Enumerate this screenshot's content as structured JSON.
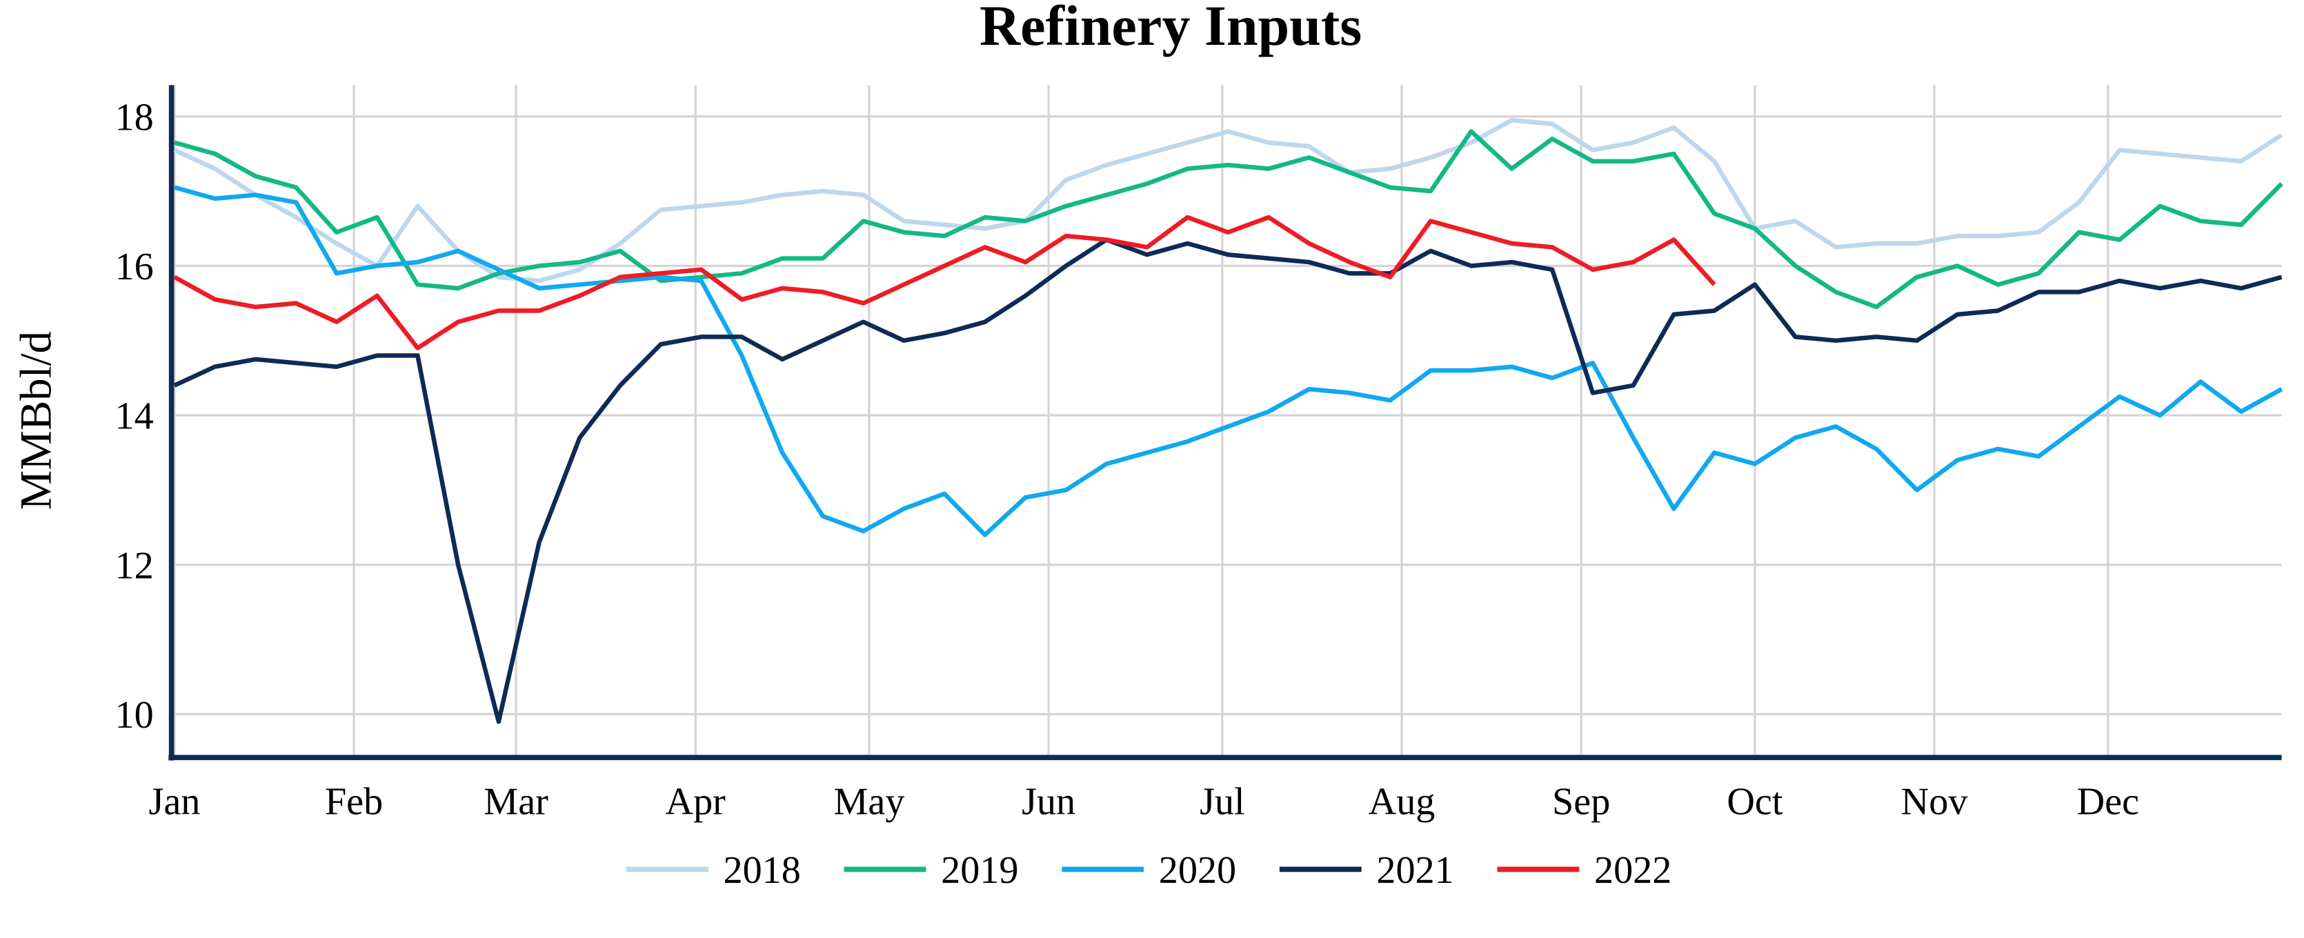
{
  "chart_data": {
    "type": "line",
    "title": "Refinery Inputs",
    "y_label": "MMBbl/d",
    "x": [
      0,
      7,
      14,
      21,
      28,
      35,
      42,
      49,
      56,
      63,
      70,
      77,
      84,
      91,
      98,
      105,
      112,
      119,
      126,
      133,
      140,
      147,
      154,
      161,
      168,
      175,
      182,
      189,
      196,
      203,
      210,
      217,
      224,
      231,
      238,
      245,
      252,
      259,
      266,
      273,
      280,
      287,
      294,
      301,
      308,
      315,
      322,
      329,
      336,
      343,
      350,
      357,
      364
    ],
    "xlim": [
      0,
      364
    ],
    "xticks": [
      {
        "value": 0,
        "label": "Jan"
      },
      {
        "value": 31,
        "label": "Feb"
      },
      {
        "value": 59,
        "label": "Mar"
      },
      {
        "value": 90,
        "label": "Apr"
      },
      {
        "value": 120,
        "label": "May"
      },
      {
        "value": 151,
        "label": "Jun"
      },
      {
        "value": 181,
        "label": "Jul"
      },
      {
        "value": 212,
        "label": "Aug"
      },
      {
        "value": 243,
        "label": "Sep"
      },
      {
        "value": 273,
        "label": "Oct"
      },
      {
        "value": 304,
        "label": "Nov"
      },
      {
        "value": 334,
        "label": "Dec"
      }
    ],
    "ylim": [
      9.42,
      18.42
    ],
    "yticks": [
      10,
      12,
      14,
      16,
      18
    ],
    "grid": true,
    "legend": "bottom",
    "series": [
      {
        "name": "2018",
        "color": "#bdd7ee",
        "values": [
          17.55,
          17.3,
          16.95,
          16.65,
          16.3,
          16.0,
          16.8,
          16.2,
          15.85,
          15.8,
          15.95,
          16.3,
          16.75,
          16.8,
          16.85,
          16.95,
          17.0,
          16.95,
          16.6,
          16.55,
          16.5,
          16.6,
          17.15,
          17.35,
          17.5,
          17.65,
          17.8,
          17.65,
          17.6,
          17.25,
          17.3,
          17.45,
          17.65,
          17.95,
          17.9,
          17.55,
          17.65,
          17.85,
          17.4,
          16.5,
          16.6,
          16.25,
          16.3,
          16.3,
          16.4,
          16.4,
          16.45,
          16.85,
          17.55,
          17.5,
          17.45,
          17.4,
          17.75
        ]
      },
      {
        "name": "2019",
        "color": "#14b886",
        "values": [
          17.65,
          17.5,
          17.2,
          17.05,
          16.45,
          16.65,
          15.75,
          15.7,
          15.9,
          16.0,
          16.05,
          16.2,
          15.8,
          15.85,
          15.9,
          16.1,
          16.1,
          16.6,
          16.45,
          16.4,
          16.65,
          16.6,
          16.8,
          16.95,
          17.1,
          17.3,
          17.35,
          17.3,
          17.45,
          17.25,
          17.05,
          17.0,
          17.8,
          17.3,
          17.7,
          17.4,
          17.4,
          17.5,
          16.7,
          16.5,
          16.0,
          15.65,
          15.45,
          15.85,
          16.0,
          15.75,
          15.9,
          16.45,
          16.35,
          16.8,
          16.6,
          16.55,
          17.1
        ]
      },
      {
        "name": "2020",
        "color": "#12a8ef",
        "values": [
          17.05,
          16.9,
          16.95,
          16.85,
          15.9,
          16.0,
          16.05,
          16.2,
          15.95,
          15.7,
          15.75,
          15.8,
          15.85,
          15.8,
          14.8,
          13.5,
          12.65,
          12.45,
          12.75,
          12.95,
          12.4,
          12.9,
          13.0,
          13.35,
          13.5,
          13.65,
          13.85,
          14.05,
          14.35,
          14.3,
          14.2,
          14.6,
          14.6,
          14.65,
          14.5,
          14.7,
          13.7,
          12.75,
          13.5,
          13.35,
          13.7,
          13.85,
          13.55,
          13.0,
          13.4,
          13.55,
          13.45,
          13.85,
          14.25,
          14.0,
          14.45,
          14.05,
          14.35
        ]
      },
      {
        "name": "2021",
        "color": "#0d2b55",
        "values": [
          14.4,
          14.65,
          14.75,
          14.7,
          14.65,
          14.8,
          14.8,
          12.0,
          9.9,
          12.3,
          13.7,
          14.4,
          14.95,
          15.05,
          15.05,
          14.75,
          15.0,
          15.25,
          15.0,
          15.1,
          15.25,
          15.6,
          16.0,
          16.35,
          16.15,
          16.3,
          16.15,
          16.1,
          16.05,
          15.9,
          15.9,
          16.2,
          16.0,
          16.05,
          15.95,
          14.3,
          14.4,
          15.35,
          15.4,
          15.75,
          15.05,
          15.0,
          15.05,
          15.0,
          15.35,
          15.4,
          15.65,
          15.65,
          15.8,
          15.7,
          15.8,
          15.7,
          15.85
        ]
      },
      {
        "name": "2022",
        "color": "#ee1c25",
        "values": [
          15.85,
          15.55,
          15.45,
          15.5,
          15.25,
          15.6,
          14.9,
          15.25,
          15.4,
          15.4,
          15.6,
          15.85,
          15.9,
          15.95,
          15.55,
          15.7,
          15.65,
          15.5,
          15.75,
          16.0,
          16.25,
          16.05,
          16.4,
          16.35,
          16.25,
          16.65,
          16.45,
          16.65,
          16.3,
          16.05,
          15.85,
          16.6,
          16.45,
          16.3,
          16.25,
          15.95,
          16.05,
          16.35,
          15.75,
          null,
          null,
          null,
          null,
          null,
          null,
          null,
          null,
          null,
          null,
          null,
          null,
          null,
          null
        ]
      }
    ]
  }
}
